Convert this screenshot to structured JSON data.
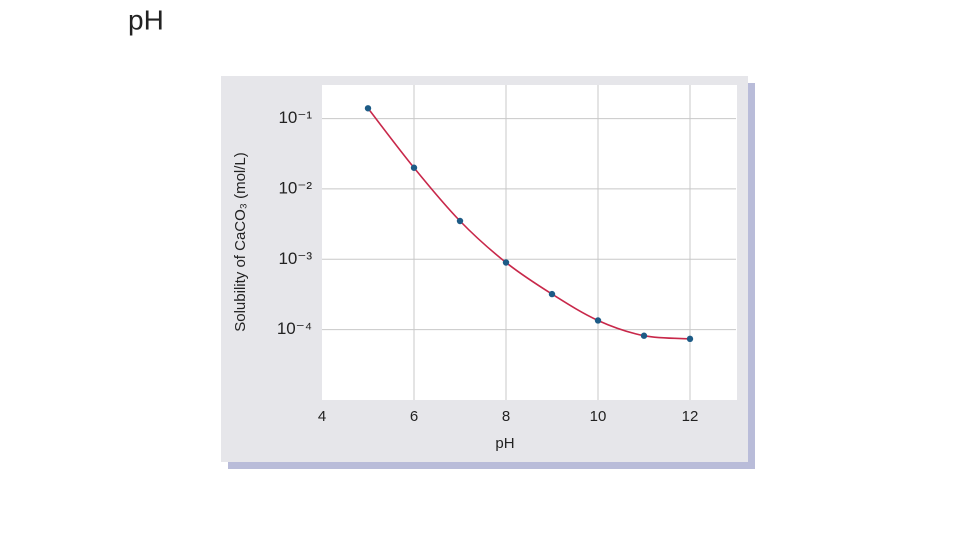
{
  "slide_title": "pH",
  "chart_data": {
    "type": "line",
    "x_label": "pH",
    "y_label": "Solubility of CaCO₃ (mol/L)",
    "x": [
      5,
      6,
      7,
      8,
      9,
      10,
      11,
      12
    ],
    "series": [
      {
        "color": "#c8284a",
        "marker_color": "#1d5b86",
        "values": [
          0.14,
          0.02,
          0.0035,
          0.0009,
          0.00032,
          0.000135,
          8.2e-05,
          7.4e-05
        ]
      }
    ],
    "xlim": [
      4,
      13
    ],
    "xticks": [
      4,
      6,
      8,
      10,
      12
    ],
    "ylim": [
      1e-05,
      0.3
    ],
    "y_log": true,
    "yticks": [
      {
        "value": 0.1,
        "label": "10⁻¹"
      },
      {
        "value": 0.01,
        "label": "10⁻²"
      },
      {
        "value": 0.001,
        "label": "10⁻³"
      },
      {
        "value": 0.0001,
        "label": "10⁻⁴"
      }
    ],
    "grid": true
  }
}
